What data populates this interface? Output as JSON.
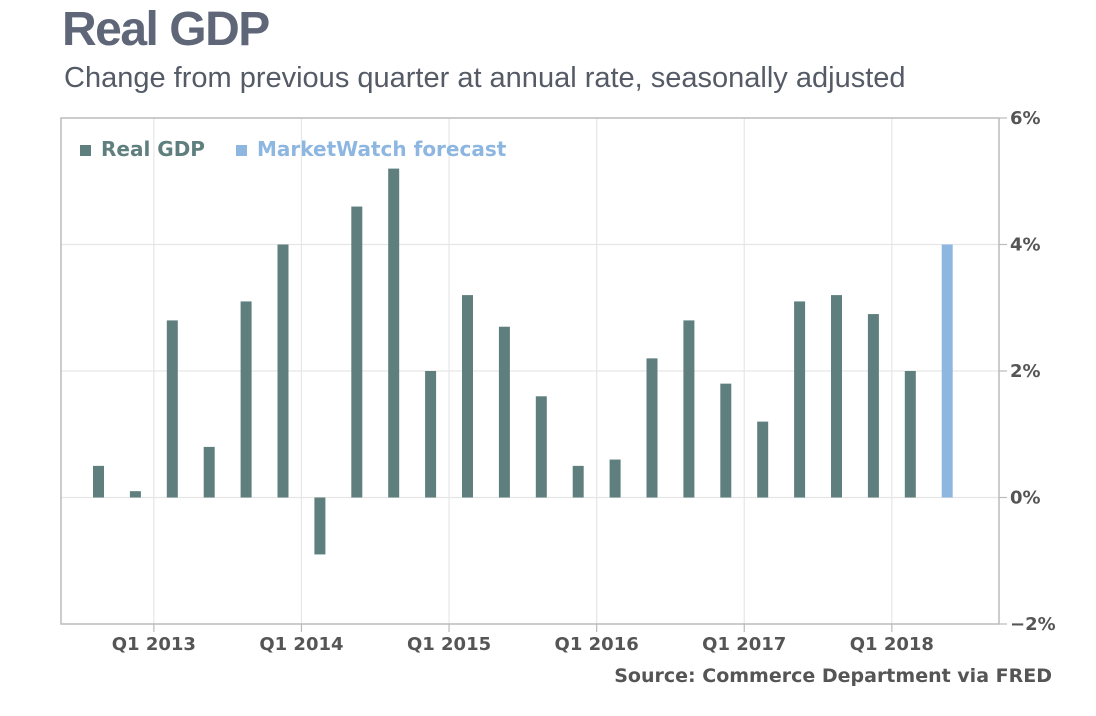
{
  "header": {
    "title": "Real GDP",
    "subtitle": "Change from previous quarter at annual rate, seasonally adjusted"
  },
  "footer": {
    "source": "Source: Commerce Department via FRED"
  },
  "colors": {
    "actual": "#5f7f7e",
    "forecast": "#8db6e1",
    "grid": "#e6e6e6",
    "frame": "#bbbbbb"
  },
  "chart_data": {
    "type": "bar",
    "legend": [
      {
        "name": "Real GDP",
        "color": "#5f7f7e"
      },
      {
        "name": "MarketWatch forecast",
        "color": "#8db6e1"
      }
    ],
    "legend_position": "top-left",
    "y_axis_side": "right",
    "ylim": [
      -2,
      6
    ],
    "yticks": [
      -2,
      0,
      2,
      4,
      6
    ],
    "ytick_labels": [
      "−2%",
      "0%",
      "2%",
      "4%",
      "6%"
    ],
    "xtick_labels": [
      "Q1 2013",
      "Q1 2014",
      "Q1 2015",
      "Q1 2016",
      "Q1 2017",
      "Q1 2018"
    ],
    "grid": true,
    "categories": [
      "Q3 2012",
      "Q4 2012",
      "Q1 2013",
      "Q2 2013",
      "Q3 2013",
      "Q4 2013",
      "Q1 2014",
      "Q2 2014",
      "Q3 2014",
      "Q4 2014",
      "Q1 2015",
      "Q2 2015",
      "Q3 2015",
      "Q4 2015",
      "Q1 2016",
      "Q2 2016",
      "Q3 2016",
      "Q4 2016",
      "Q1 2017",
      "Q2 2017",
      "Q3 2017",
      "Q4 2017",
      "Q1 2018",
      "Q2 2018"
    ],
    "series": [
      {
        "name": "Real GDP",
        "values": [
          0.5,
          0.1,
          2.8,
          0.8,
          3.1,
          4.0,
          -0.9,
          4.6,
          5.2,
          2.0,
          3.2,
          2.7,
          1.6,
          0.5,
          0.6,
          2.2,
          2.8,
          1.8,
          1.2,
          3.1,
          3.2,
          2.9,
          2.0,
          null
        ]
      },
      {
        "name": "MarketWatch forecast",
        "values": [
          null,
          null,
          null,
          null,
          null,
          null,
          null,
          null,
          null,
          null,
          null,
          null,
          null,
          null,
          null,
          null,
          null,
          null,
          null,
          null,
          null,
          null,
          null,
          4.0
        ]
      }
    ]
  }
}
